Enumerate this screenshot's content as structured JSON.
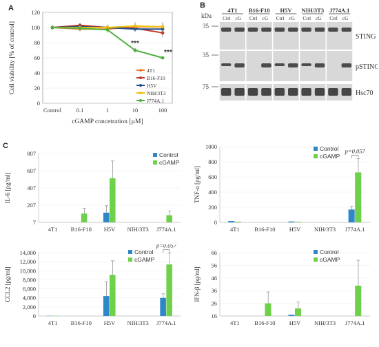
{
  "panels": {
    "a": "A",
    "b": "B",
    "c": "C"
  },
  "panel_a": {
    "chart_data": {
      "type": "line",
      "categories": [
        "Control",
        "0.1",
        "1",
        "10",
        "100"
      ],
      "xlabel": "cGAMP concetration [µM]",
      "ylabel": "Cell viability [% of control]",
      "ylim": [
        0,
        120
      ],
      "yticks": [
        "0",
        "20",
        "40",
        "60",
        "80",
        "100",
        "120"
      ],
      "series": [
        {
          "name": "4T1",
          "color": "#ee7a2e",
          "values": [
            100,
            98,
            98,
            101,
            101
          ],
          "err": [
            3,
            3,
            4,
            4,
            6
          ]
        },
        {
          "name": "B16-F10",
          "color": "#c0392b",
          "values": [
            100,
            103,
            100,
            99,
            93
          ],
          "err": [
            3,
            3,
            4,
            4,
            6
          ]
        },
        {
          "name": "H5V",
          "color": "#1f4e8c",
          "values": [
            100,
            101,
            100,
            98,
            98
          ],
          "err": [
            3,
            3,
            3,
            4,
            4
          ]
        },
        {
          "name": "NIH/3T3",
          "color": "#f2c10d",
          "values": [
            100,
            100,
            100,
            102,
            101
          ],
          "err": [
            3,
            3,
            3,
            5,
            4
          ]
        },
        {
          "name": "J774A.1",
          "color": "#4caf3e",
          "values": [
            100,
            99,
            97,
            70,
            60
          ],
          "err": [
            3,
            3,
            4,
            3,
            2
          ]
        }
      ],
      "annotations": [
        "***",
        "***"
      ]
    }
  },
  "panel_b": {
    "kda_label": "kDa",
    "cell_lines": [
      "4T1",
      "B16-F10",
      "H5V",
      "NIH/3T3",
      "J774A.1"
    ],
    "lane_labels": [
      "Ctrl",
      "cG"
    ],
    "rows": [
      {
        "marker": "35",
        "label": "STING"
      },
      {
        "marker": "35",
        "label": "pSTING"
      },
      {
        "marker": "75",
        "label": "Hsc70"
      }
    ]
  },
  "panel_c": {
    "charts": [
      {
        "chart_data": {
          "type": "bar",
          "categories": [
            "4T1",
            "B16-F10",
            "H5V",
            "NIH/3T3",
            "J774A.1"
          ],
          "ylabel": "IL-6 [pg/ml]",
          "ylim": [
            7,
            807
          ],
          "yticks": [
            "7",
            "207",
            "407",
            "607",
            "807"
          ],
          "series": [
            {
              "name": "Control",
              "color": "#2f86c8",
              "values": [
                0,
                0,
                120,
                0,
                0
              ],
              "err": [
                0,
                0,
                80,
                0,
                0
              ]
            },
            {
              "name": "cGAMP",
              "color": "#6fd04a",
              "values": [
                0,
                110,
                520,
                0,
                90
              ],
              "err": [
                0,
                60,
                200,
                0,
                50
              ]
            }
          ]
        }
      },
      {
        "chart_data": {
          "type": "bar",
          "categories": [
            "4T1",
            "B16-F10",
            "H5V",
            "NIH/3T3",
            "J774A.1"
          ],
          "ylabel": "TNF-α [pg/ml]",
          "ylim": [
            0,
            1000
          ],
          "yticks": [
            "0",
            "200",
            "400",
            "600",
            "800",
            "1000"
          ],
          "series": [
            {
              "name": "Control",
              "color": "#2f86c8",
              "values": [
                18,
                0,
                12,
                0,
                170
              ],
              "err": [
                0,
                0,
                0,
                0,
                40
              ]
            },
            {
              "name": "cGAMP",
              "color": "#6fd04a",
              "values": [
                10,
                0,
                8,
                0,
                660
              ],
              "err": [
                0,
                0,
                0,
                0,
                180
              ]
            }
          ],
          "pvalue": "p=0.057"
        }
      },
      {
        "chart_data": {
          "type": "bar",
          "categories": [
            "4T1",
            "B16-F10",
            "H5V",
            "NIH/3T3",
            "J774A.1"
          ],
          "ylabel": "CCL2 [pg/ml]",
          "ylim": [
            0,
            14000
          ],
          "yticks": [
            "0",
            "2,000",
            "4,000",
            "6,000",
            "8,000",
            "10,000",
            "12,000",
            "14,000"
          ],
          "series": [
            {
              "name": "Control",
              "color": "#2f86c8",
              "values": [
                50,
                0,
                4400,
                0,
                4000
              ],
              "err": [
                0,
                0,
                3200,
                0,
                900
              ]
            },
            {
              "name": "cGAMP",
              "color": "#6fd04a",
              "values": [
                50,
                0,
                9100,
                0,
                11400
              ],
              "err": [
                0,
                0,
                3100,
                0,
                2500
              ]
            }
          ],
          "pvalue": "p=0.057"
        }
      },
      {
        "chart_data": {
          "type": "bar",
          "categories": [
            "4T1",
            "B16-F10",
            "H5V",
            "NIH/3T3",
            "J774A.1"
          ],
          "ylabel": "IFN-β [pg/ml]",
          "ylim": [
            16,
            66
          ],
          "yticks": [
            "16",
            "26",
            "36",
            "46",
            "56",
            "66"
          ],
          "series": [
            {
              "name": "Control",
              "color": "#2f86c8",
              "values": [
                16,
                16,
                17,
                16,
                16
              ],
              "err": [
                0,
                0,
                0,
                0,
                0
              ]
            },
            {
              "name": "cGAMP",
              "color": "#6fd04a",
              "values": [
                16,
                26,
                22,
                16,
                40
              ],
              "err": [
                0,
                9,
                5,
                0,
                20
              ]
            }
          ]
        }
      }
    ]
  }
}
